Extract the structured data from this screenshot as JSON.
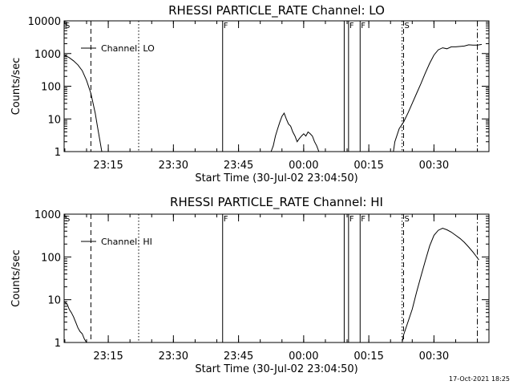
{
  "footer": {
    "timestamp": "17-Oct-2021 18:25"
  },
  "chart_data": [
    {
      "type": "line",
      "title": "RHESSI PARTICLE_RATE Channel: LO",
      "xlabel": "Start Time (30-Jul-02 23:04:50)",
      "ylabel": "Counts/sec",
      "y_scale": "log",
      "ylim": [
        1,
        10000
      ],
      "y_ticks": [
        1,
        10,
        100,
        1000,
        10000
      ],
      "y_tick_labels": [
        "1",
        "10",
        "100",
        "1000",
        "10000"
      ],
      "xlim": [
        "23:04:50",
        "00:42:40"
      ],
      "x_ticks": [
        "23:15",
        "23:30",
        "23:45",
        "00:00",
        "00:15",
        "00:30"
      ],
      "legend": {
        "label": "Channel: LO",
        "position": "top-left"
      },
      "color": "#000000",
      "series": [
        {
          "segments": [
            [
              [
                "23:04:50",
                900
              ],
              [
                "23:06:00",
                750
              ],
              [
                "23:07:00",
                600
              ],
              [
                "23:08:00",
                450
              ],
              [
                "23:09:00",
                300
              ],
              [
                "23:10:00",
                150
              ],
              [
                "23:11:00",
                60
              ],
              [
                "23:12:00",
                15
              ],
              [
                "23:12:30",
                6
              ],
              [
                "23:13:00",
                2.5
              ],
              [
                "23:13:30",
                1
              ]
            ],
            [
              [
                "23:52:30",
                1
              ],
              [
                "23:53:00",
                1.5
              ],
              [
                "23:53:30",
                3
              ],
              [
                "23:54:00",
                5
              ],
              [
                "23:54:30",
                8
              ],
              [
                "23:55:00",
                12
              ],
              [
                "23:55:30",
                15
              ],
              [
                "23:56:00",
                10
              ],
              [
                "23:56:30",
                7
              ],
              [
                "23:57:00",
                6
              ],
              [
                "23:57:30",
                4
              ],
              [
                "23:58:00",
                3
              ],
              [
                "23:58:30",
                2
              ],
              [
                "23:59:00",
                2.5
              ],
              [
                "23:59:30",
                3
              ],
              [
                "00:00:00",
                3.5
              ],
              [
                "00:00:30",
                3
              ],
              [
                "00:01:00",
                4
              ],
              [
                "00:01:30",
                3.5
              ],
              [
                "00:02:00",
                3
              ],
              [
                "00:02:30",
                2
              ],
              [
                "00:03:00",
                1.5
              ],
              [
                "00:03:30",
                1
              ]
            ],
            [
              [
                "00:20:40",
                1
              ],
              [
                "00:21:00",
                2
              ],
              [
                "00:22:00",
                5
              ],
              [
                "00:23:00",
                8
              ],
              [
                "00:24:00",
                15
              ],
              [
                "00:25:00",
                30
              ],
              [
                "00:26:00",
                60
              ],
              [
                "00:27:00",
                120
              ],
              [
                "00:28:00",
                250
              ],
              [
                "00:29:00",
                500
              ],
              [
                "00:30:00",
                900
              ],
              [
                "00:31:00",
                1300
              ],
              [
                "00:32:00",
                1500
              ],
              [
                "00:33:00",
                1400
              ],
              [
                "00:34:00",
                1600
              ],
              [
                "00:35:00",
                1600
              ],
              [
                "00:36:00",
                1650
              ],
              [
                "00:37:00",
                1700
              ],
              [
                "00:38:00",
                1850
              ],
              [
                "00:39:00",
                1800
              ],
              [
                "00:40:00",
                1800
              ],
              [
                "00:41:00",
                1900
              ]
            ]
          ]
        }
      ],
      "markers": [
        {
          "time": "23:04:50",
          "style": "dashdot",
          "label": "S"
        },
        {
          "time": "23:11:00",
          "style": "dashed",
          "label": ""
        },
        {
          "time": "23:22:00",
          "style": "dotted",
          "label": ""
        },
        {
          "time": "23:41:20",
          "style": "solid",
          "label": "F"
        },
        {
          "time": "00:09:20",
          "style": "solid",
          "label": ""
        },
        {
          "time": "00:10:20",
          "style": "solid",
          "label": "F"
        },
        {
          "time": "00:13:00",
          "style": "solid",
          "label": "F"
        },
        {
          "time": "00:22:40",
          "style": "dotted",
          "label": ""
        },
        {
          "time": "00:23:00",
          "style": "dashed",
          "label": "S"
        },
        {
          "time": "00:40:00",
          "style": "dashdot",
          "label": ""
        }
      ]
    },
    {
      "type": "line",
      "title": "RHESSI PARTICLE_RATE Channel: HI",
      "xlabel": "Start Time (30-Jul-02 23:04:50)",
      "ylabel": "Counts/sec",
      "y_scale": "log",
      "ylim": [
        1,
        1000
      ],
      "y_ticks": [
        1,
        10,
        100,
        1000
      ],
      "y_tick_labels": [
        "1",
        "10",
        "100",
        "1000"
      ],
      "xlim": [
        "23:04:50",
        "00:42:40"
      ],
      "x_ticks": [
        "23:15",
        "23:30",
        "23:45",
        "00:00",
        "00:15",
        "00:30"
      ],
      "legend": {
        "label": "Channel: HI",
        "position": "top-left"
      },
      "color": "#000000",
      "series": [
        {
          "segments": [
            [
              [
                "23:04:50",
                9
              ],
              [
                "23:05:30",
                8
              ],
              [
                "23:06:00",
                6
              ],
              [
                "23:06:30",
                5
              ],
              [
                "23:07:00",
                4
              ],
              [
                "23:07:30",
                3
              ],
              [
                "23:08:00",
                2.2
              ],
              [
                "23:08:30",
                1.8
              ],
              [
                "23:09:00",
                1.6
              ],
              [
                "23:09:30",
                1.2
              ],
              [
                "23:10:00",
                1
              ]
            ],
            [
              [
                "00:22:40",
                1
              ],
              [
                "00:23:00",
                1.5
              ],
              [
                "00:24:00",
                3
              ],
              [
                "00:25:00",
                6
              ],
              [
                "00:26:00",
                15
              ],
              [
                "00:27:00",
                35
              ],
              [
                "00:28:00",
                80
              ],
              [
                "00:29:00",
                180
              ],
              [
                "00:30:00",
                320
              ],
              [
                "00:31:00",
                420
              ],
              [
                "00:32:00",
                470
              ],
              [
                "00:33:00",
                430
              ],
              [
                "00:34:00",
                380
              ],
              [
                "00:35:00",
                320
              ],
              [
                "00:36:00",
                270
              ],
              [
                "00:37:00",
                220
              ],
              [
                "00:38:00",
                170
              ],
              [
                "00:39:00",
                130
              ],
              [
                "00:40:00",
                95
              ],
              [
                "00:40:20",
                85
              ]
            ]
          ]
        }
      ],
      "markers": [
        {
          "time": "23:04:50",
          "style": "dashdot",
          "label": "S"
        },
        {
          "time": "23:11:00",
          "style": "dashed",
          "label": ""
        },
        {
          "time": "23:22:00",
          "style": "dotted",
          "label": ""
        },
        {
          "time": "23:41:20",
          "style": "solid",
          "label": "F"
        },
        {
          "time": "00:09:20",
          "style": "solid",
          "label": ""
        },
        {
          "time": "00:10:20",
          "style": "solid",
          "label": "F"
        },
        {
          "time": "00:13:00",
          "style": "solid",
          "label": "F"
        },
        {
          "time": "00:22:40",
          "style": "dotted",
          "label": ""
        },
        {
          "time": "00:23:00",
          "style": "dashed",
          "label": "S"
        },
        {
          "time": "00:40:00",
          "style": "dashdot",
          "label": ""
        }
      ]
    }
  ]
}
